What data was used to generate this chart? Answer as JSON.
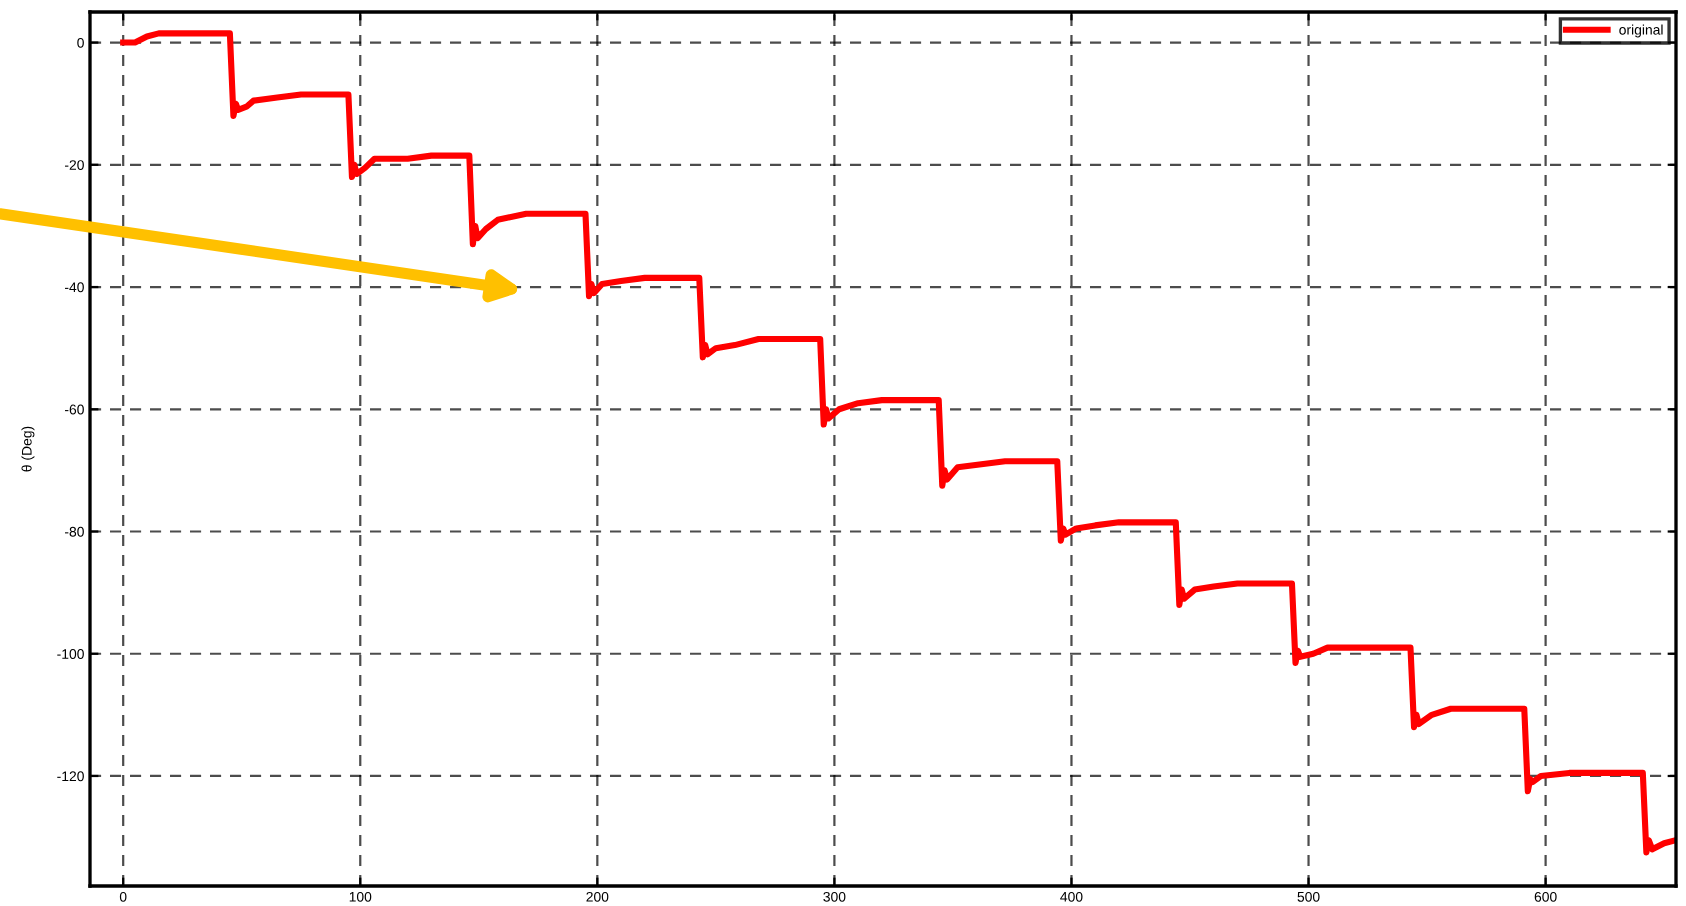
{
  "chart_data": {
    "type": "line",
    "ylabel": "θ (Deg)",
    "xlim": [
      -14,
      655
    ],
    "ylim": [
      -138,
      5
    ],
    "xticks": [
      0,
      100,
      200,
      300,
      400,
      500,
      600
    ],
    "yticks": [
      -120,
      -100,
      -80,
      -60,
      -40,
      -20,
      0
    ],
    "grid": true,
    "legend": "top right",
    "marker": "none",
    "line_style": "solid",
    "series": [
      {
        "name": "original",
        "color": "#ff0000",
        "x": [
          0,
          5,
          10,
          15,
          45,
          46.5,
          47.5,
          48.5,
          52,
          55,
          65,
          75,
          95,
          96.5,
          97.5,
          98.5,
          102,
          106,
          120,
          130,
          146,
          147.5,
          148.5,
          149.5,
          153,
          158,
          170,
          195,
          196.5,
          197.5,
          198.5,
          202,
          210,
          220,
          243,
          244.5,
          245.5,
          246.5,
          250,
          258,
          268,
          294,
          295.5,
          296.5,
          297.5,
          302,
          310,
          320,
          344,
          345.5,
          346.5,
          347.5,
          352,
          362,
          372,
          394,
          395.5,
          396.5,
          397.5,
          402,
          410,
          420,
          444,
          445.5,
          446.5,
          447.5,
          452,
          460,
          470,
          493,
          494.5,
          495.5,
          496.5,
          502,
          508,
          543,
          544.5,
          545.5,
          546.5,
          552,
          560,
          591,
          592.5,
          593.5,
          594.5,
          598,
          610,
          641,
          642.5,
          643.5,
          645,
          650,
          655
        ],
        "values": [
          0,
          0,
          1,
          1.5,
          1.5,
          -12,
          -10,
          -11,
          -10.5,
          -9.5,
          -9,
          -8.5,
          -8.5,
          -22,
          -20,
          -21.5,
          -20.5,
          -19,
          -19,
          -18.5,
          -18.5,
          -33,
          -30,
          -32,
          -30.5,
          -29,
          -28,
          -28,
          -41.5,
          -39.5,
          -41,
          -39.5,
          -39,
          -38.5,
          -38.5,
          -51.5,
          -49.5,
          -51,
          -50,
          -49.5,
          -48.5,
          -48.5,
          -62.5,
          -60,
          -61.5,
          -60,
          -59,
          -58.5,
          -58.5,
          -72.5,
          -70,
          -71.5,
          -69.5,
          -69,
          -68.5,
          -68.5,
          -81.5,
          -79.5,
          -80.5,
          -79.5,
          -79,
          -78.5,
          -78.5,
          -92,
          -89.5,
          -91,
          -89.5,
          -89,
          -88.5,
          -88.5,
          -101.5,
          -99.5,
          -100.5,
          -100,
          -99,
          -99,
          -112,
          -110,
          -111.5,
          -110,
          -109,
          -109,
          -122.5,
          -120.5,
          -121,
          -120,
          -119.5,
          -119.5,
          -132.5,
          -130.5,
          -132,
          -131,
          -130.5
        ]
      }
    ]
  }
}
